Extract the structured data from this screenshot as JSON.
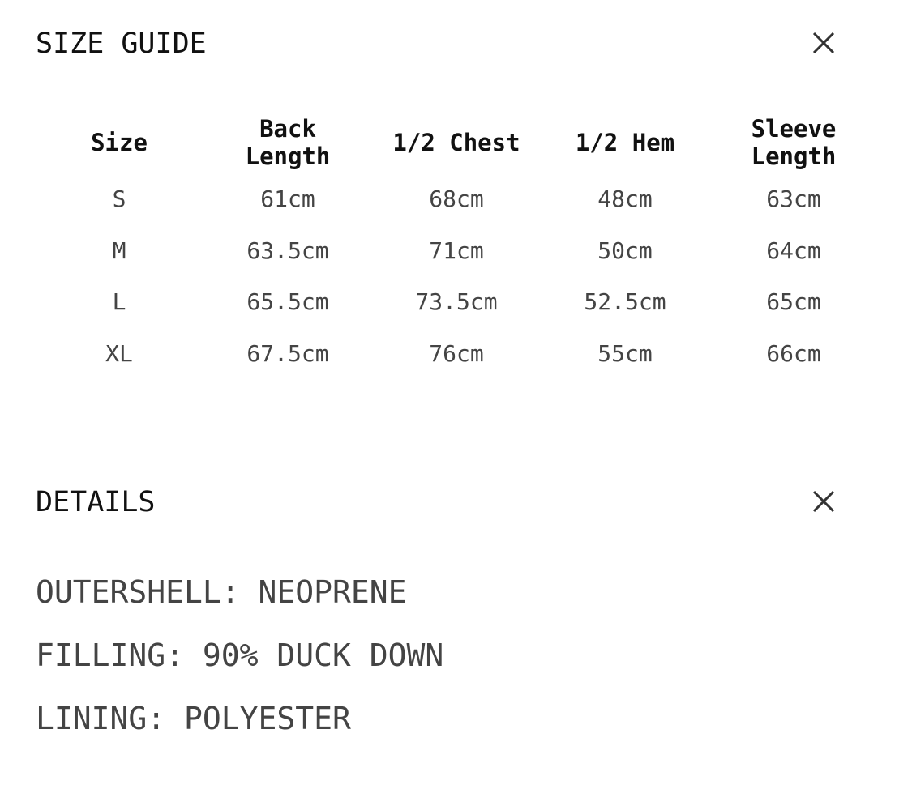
{
  "size_guide": {
    "title": "SIZE GUIDE",
    "close_icon": "close-icon",
    "headers": [
      "Size",
      "Back\nLength",
      "1/2 Chest",
      "1/2 Hem",
      "Sleeve\nLength"
    ],
    "rows": [
      [
        "S",
        "61cm",
        "68cm",
        "48cm",
        "63cm"
      ],
      [
        "M",
        "63.5cm",
        "71cm",
        "50cm",
        "64cm"
      ],
      [
        "L",
        "65.5cm",
        "73.5cm",
        "52.5cm",
        "65cm"
      ],
      [
        "XL",
        "67.5cm",
        "76cm",
        "55cm",
        "66cm"
      ]
    ]
  },
  "details": {
    "title": "DETAILS",
    "close_icon": "close-icon",
    "lines": [
      "OUTERSHELL: NEOPRENE",
      "FILLING: 90% DUCK DOWN",
      "LINING: POLYESTER"
    ]
  }
}
